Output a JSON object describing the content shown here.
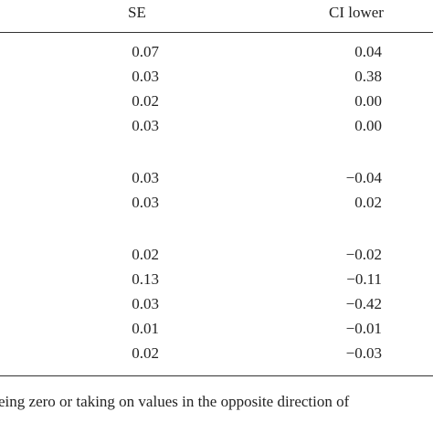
{
  "table": {
    "header": [
      "SE",
      "CI lower"
    ],
    "groups": [
      [
        [
          "0.07",
          "0.04"
        ],
        [
          "0.03",
          "0.38"
        ],
        [
          "0.02",
          "0.00"
        ],
        [
          "0.03",
          "0.00"
        ]
      ],
      [
        [
          "0.03",
          "−0.04"
        ],
        [
          "0.03",
          "0.02"
        ]
      ],
      [
        [
          "0.02",
          "−0.02"
        ],
        [
          "0.13",
          "−0.11"
        ],
        [
          "0.03",
          "−0.42"
        ],
        [
          "0.01",
          "−0.01"
        ],
        [
          "0.02",
          "−0.03"
        ]
      ]
    ]
  },
  "footnote": "eing zero or taking on values in the opposite direction of"
}
